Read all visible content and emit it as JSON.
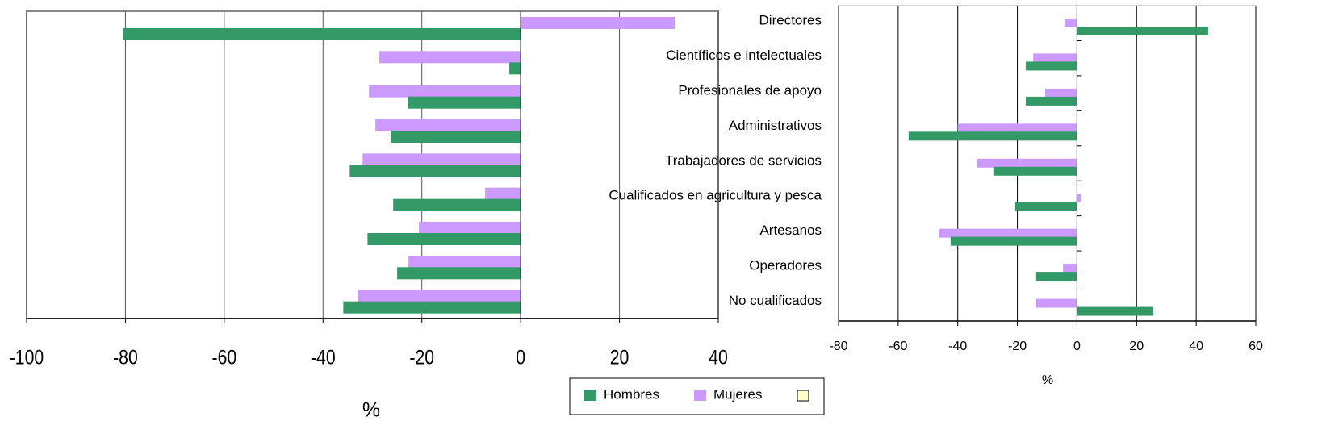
{
  "chart_data": [
    {
      "type": "bar",
      "orientation": "horizontal",
      "xlabel": "%",
      "xlim": [
        -100,
        40
      ],
      "xticks": [
        -100,
        -80,
        -60,
        -40,
        -20,
        0,
        20,
        40
      ],
      "grid": true,
      "legend": "bottom",
      "series": [
        {
          "name": "Hombres",
          "color": "#339966",
          "values": [
            -80.5,
            -2.3,
            -22.9,
            -26.3,
            -34.6,
            -25.8,
            -31,
            -25,
            -35.9
          ]
        },
        {
          "name": "Mujeres",
          "color": "#cc99ff",
          "values": [
            31.2,
            -28.6,
            -30.7,
            -29.4,
            -32,
            -7.2,
            -20.6,
            -22.7,
            -33
          ]
        }
      ]
    },
    {
      "type": "bar",
      "orientation": "horizontal",
      "xlabel": "%",
      "categories": [
        "Directores",
        "Científicos e intelectuales",
        "Profesionales de apoyo",
        "Administrativos",
        "Trabajadores de servicios",
        "Cualificados en agricultura y pesca",
        "Artesanos",
        "Operadores",
        "No cualificados"
      ],
      "xlim": [
        -80,
        60
      ],
      "xticks": [
        -80,
        -60,
        -40,
        -20,
        0,
        20,
        40,
        60
      ],
      "grid": true,
      "series": [
        {
          "color": "#339966",
          "values": [
            44,
            -17.2,
            -17.2,
            -56.5,
            -27.8,
            -20.7,
            -42.4,
            -13.7,
            25.6
          ]
        },
        {
          "color": "#cc99ff",
          "values": [
            -4.2,
            -14.7,
            -10.7,
            -40,
            -33.5,
            1.5,
            -46.4,
            -4.7,
            -13.7
          ]
        }
      ]
    }
  ]
}
